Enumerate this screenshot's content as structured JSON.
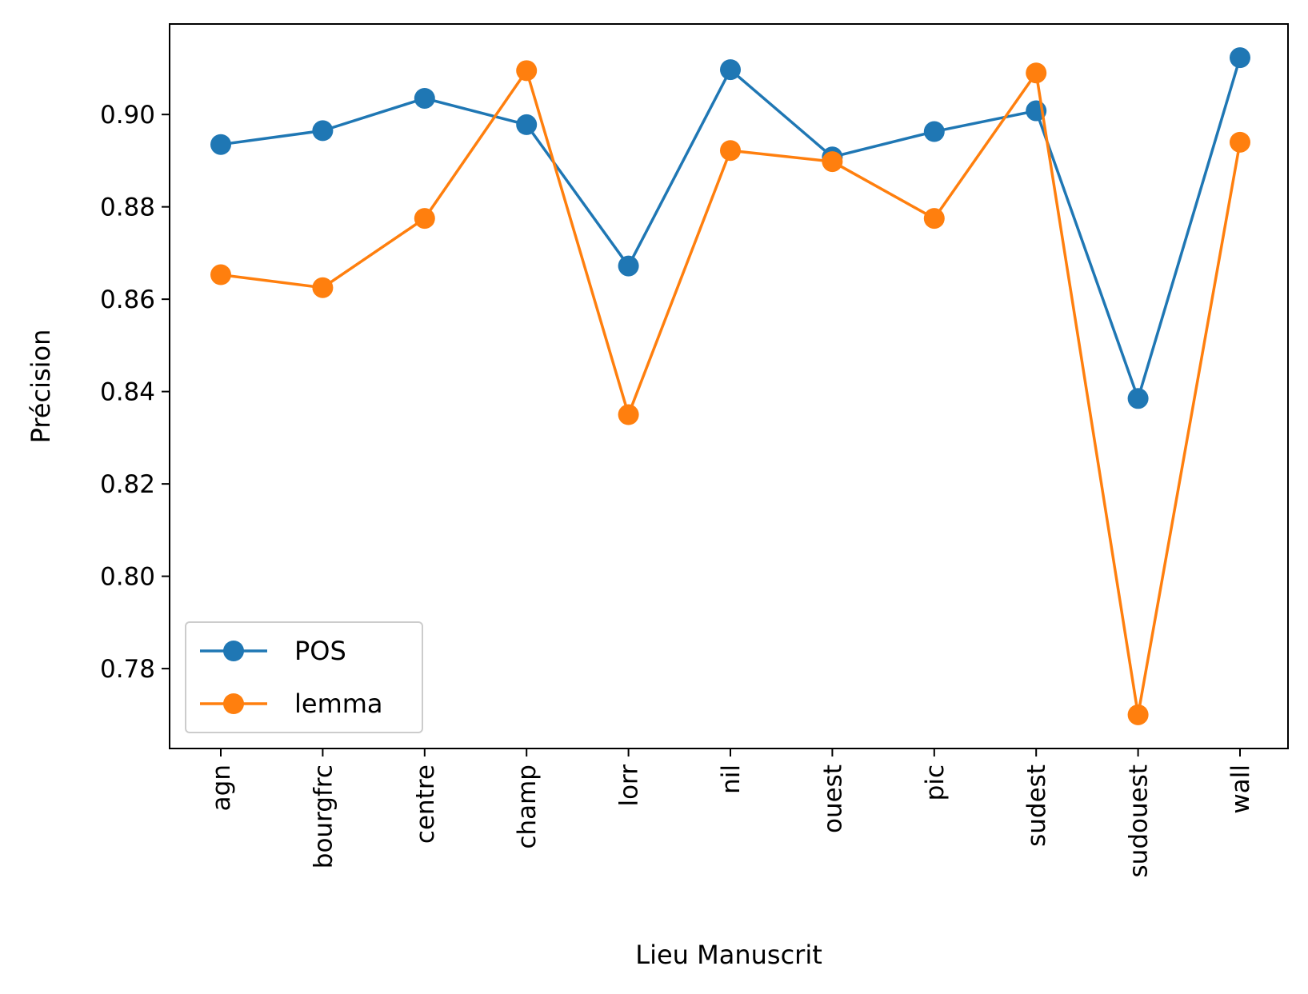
{
  "chart_data": {
    "type": "line",
    "title": "",
    "xlabel": "Lieu Manuscrit",
    "ylabel": "Précision",
    "categories": [
      "agn",
      "bourgfrc",
      "centre",
      "champ",
      "lorr",
      "nil",
      "ouest",
      "pic",
      "sudest",
      "sudouest",
      "wall"
    ],
    "ylim": [
      0.7627,
      0.9196
    ],
    "yticks": [
      0.78,
      0.8,
      0.82,
      0.84,
      0.86,
      0.88,
      0.9
    ],
    "ytick_labels": [
      "0.78",
      "0.80",
      "0.82",
      "0.84",
      "0.86",
      "0.88",
      "0.90"
    ],
    "grid": false,
    "legend_position": "lower-left",
    "series": [
      {
        "name": "POS",
        "color": "#1f77b4",
        "marker": "circle",
        "values": [
          0.8935,
          0.8965,
          0.9035,
          0.8978,
          0.8672,
          0.9097,
          0.8908,
          0.8963,
          0.9008,
          0.8385,
          0.9123
        ]
      },
      {
        "name": "lemma",
        "color": "#ff7f0e",
        "marker": "circle",
        "values": [
          0.8653,
          0.8625,
          0.8775,
          0.9095,
          0.835,
          0.8922,
          0.8898,
          0.8775,
          0.909,
          0.77,
          0.894
        ]
      }
    ]
  }
}
